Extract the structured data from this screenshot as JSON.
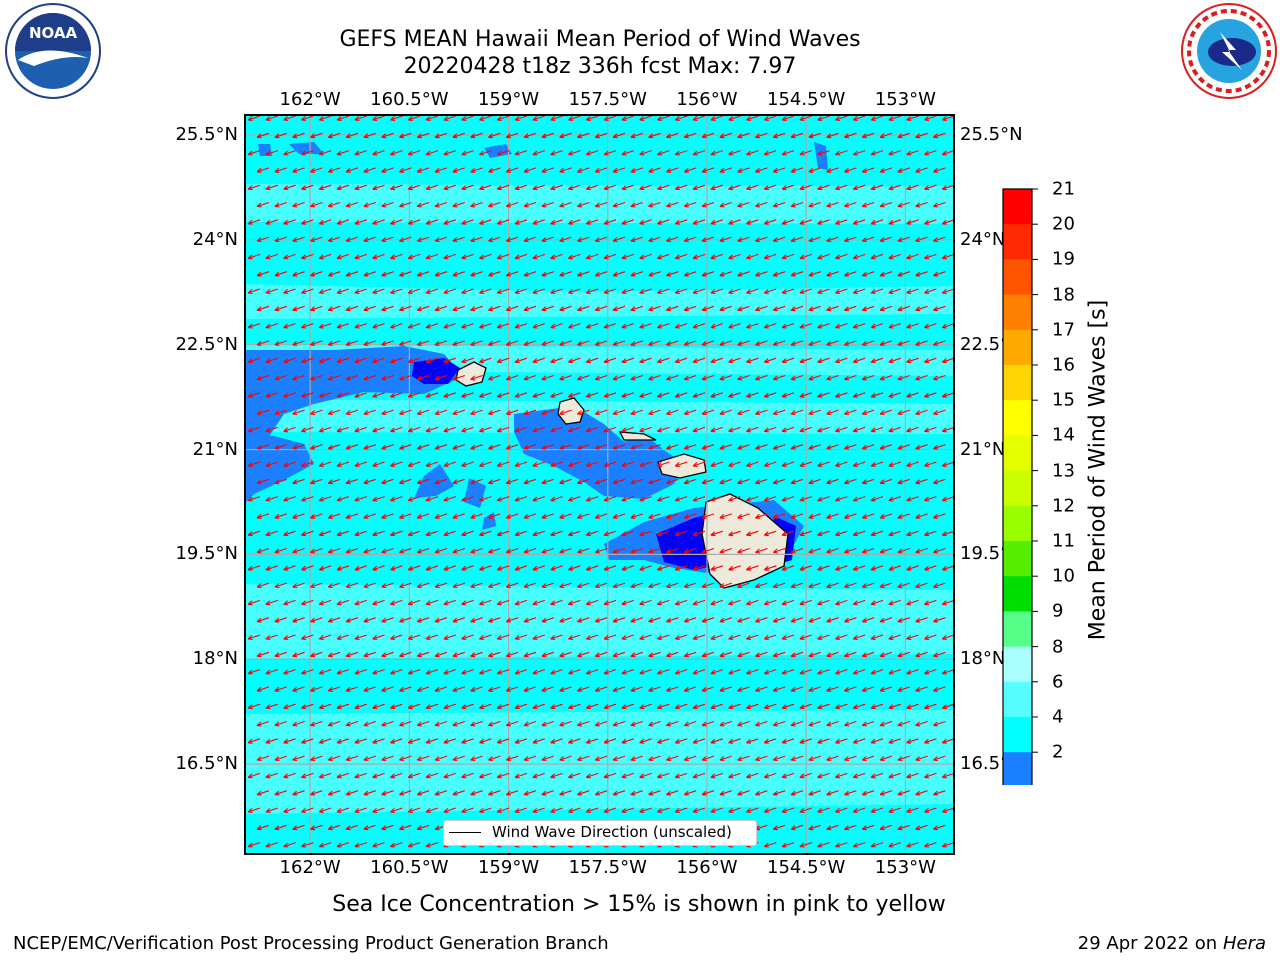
{
  "title": {
    "line1": "GEFS MEAN Hawaii Mean Period of Wind Waves",
    "line2": "20220428 t18z 336h fcst   Max: 7.97"
  },
  "logos": {
    "noaa": {
      "text": "NOAA",
      "ring_text": "NATIONAL OCEANIC AND ATMOSPHERIC ADMINISTRATION · U.S. DEPARTMENT OF COMMERCE",
      "icon": "noaa-seal-icon"
    },
    "nws": {
      "ring_text": "NATIONAL WEATHER SERVICE",
      "icon": "nws-logo-icon"
    }
  },
  "axes": {
    "lon_ticks": [
      "162°W",
      "160.5°W",
      "159°W",
      "157.5°W",
      "156°W",
      "154.5°W",
      "153°W"
    ],
    "lat_ticks": [
      "25.5°N",
      "24°N",
      "22.5°N",
      "21°N",
      "19.5°N",
      "18°N",
      "16.5°N"
    ],
    "lon_range": [
      -163.0,
      -152.25
    ],
    "lat_range": [
      15.2,
      25.8
    ]
  },
  "legend": {
    "label": "Wind Wave Direction (unscaled)"
  },
  "colorbar": {
    "label": "Mean Period of Wind Waves [s]",
    "ticks": [
      "21",
      "20",
      "19",
      "18",
      "17",
      "16",
      "15",
      "14",
      "13",
      "12",
      "11",
      "10",
      "9",
      "8",
      "6",
      "4",
      "2"
    ],
    "colors": [
      "#ff0000",
      "#ff2a00",
      "#ff5500",
      "#ff8000",
      "#ffaa00",
      "#ffd400",
      "#ffff00",
      "#e6ff00",
      "#ccff00",
      "#99ff00",
      "#55ee00",
      "#00dd00",
      "#55ff88",
      "#aaffff",
      "#55ffff",
      "#00ffff",
      "#1a80ff"
    ],
    "extend_color": "#0000ff"
  },
  "map_colors": {
    "ocean_light": "#00ffff",
    "ocean_mid": "#55ffff",
    "ocean_dark": "#1a80ff",
    "deep": "#0000ff",
    "land": "#eeeadb",
    "arrow": "#ff0000",
    "grid": "#aaaaaa"
  },
  "note": "Sea Ice Concentration > 15% is shown in pink to yellow",
  "footer": {
    "left": "NCEP/EMC/Verification Post Processing Product Generation Branch",
    "right_date": "29 Apr 2022 on ",
    "right_host": "Hera"
  }
}
